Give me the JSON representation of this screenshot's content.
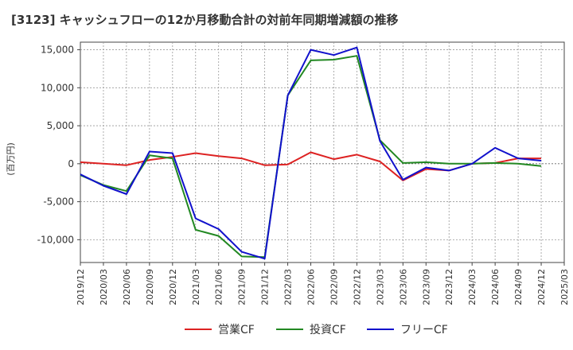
{
  "chart_data": {
    "type": "line",
    "title": "[3123]  キャッシュフローの12か月移動合計の対前年同期増減額の推移",
    "ylabel": "(百万円)",
    "xlabel": "",
    "ylim": [
      -13000,
      16000
    ],
    "yticks": [
      -10000,
      -5000,
      0,
      5000,
      10000,
      15000
    ],
    "ytick_labels": [
      "-10,000",
      "-5,000",
      "0",
      "5,000",
      "10,000",
      "15,000"
    ],
    "grid": true,
    "legend_position": "bottom",
    "x_labels": [
      "2019/12",
      "2020/03",
      "2020/06",
      "2020/09",
      "2020/12",
      "2021/03",
      "2021/06",
      "2021/09",
      "2021/12",
      "2022/03",
      "2022/06",
      "2022/09",
      "2022/12",
      "2023/03",
      "2023/06",
      "2023/09",
      "2023/12",
      "2024/03",
      "2024/06",
      "2024/09",
      "2024/12",
      "2025/03"
    ],
    "series": [
      {
        "name": "営業CF",
        "color": "#dd2222",
        "values": [
          200,
          0,
          -200,
          500,
          900,
          1400,
          1000,
          700,
          -200,
          -100,
          1500,
          600,
          1200,
          300,
          -2200,
          -700,
          -900,
          0,
          100,
          700,
          700,
          null
        ]
      },
      {
        "name": "投資CF",
        "color": "#228822",
        "values": [
          -1500,
          -2800,
          -3600,
          1100,
          700,
          -8700,
          -9500,
          -12200,
          -12300,
          9000,
          13600,
          13700,
          14200,
          3100,
          100,
          200,
          0,
          0,
          100,
          0,
          -300,
          null
        ]
      },
      {
        "name": "フリーCF",
        "color": "#1111cc",
        "values": [
          -1400,
          -2900,
          -4000,
          1600,
          1400,
          -7200,
          -8600,
          -11600,
          -12500,
          9000,
          15000,
          14300,
          15300,
          3000,
          -2100,
          -500,
          -900,
          0,
          2100,
          700,
          400,
          null
        ]
      }
    ]
  }
}
